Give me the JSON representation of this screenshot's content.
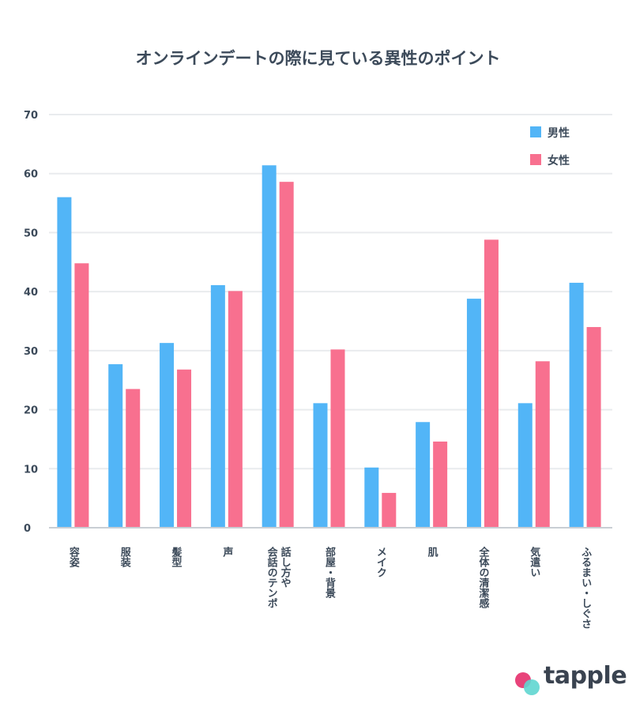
{
  "title": "オンラインデートの際に見ている異性のポイント",
  "colors": {
    "male": "#52b5f7",
    "female": "#f8708f",
    "grid": "#e9ebee",
    "axis": "#c9ced4"
  },
  "brand": {
    "name": "tapple",
    "dot_pink": "#e8437a",
    "dot_teal": "#5fd6d0"
  },
  "chart_data": {
    "type": "bar",
    "categories": [
      "容姿",
      "服装",
      "髪型",
      "声",
      "話し方や会話のテンポ",
      "部屋・背景",
      "メイク",
      "肌",
      "全体の清潔感",
      "気遣い",
      "ふるまい・しぐさ"
    ],
    "category_lines": [
      [
        "容姿"
      ],
      [
        "服装"
      ],
      [
        "髪型"
      ],
      [
        "声"
      ],
      [
        "話し方や",
        "会話のテンポ"
      ],
      [
        "部屋・背景"
      ],
      [
        "メイク"
      ],
      [
        "肌"
      ],
      [
        "全体の清潔感"
      ],
      [
        "気遣い"
      ],
      [
        "ふるまい・しぐさ"
      ]
    ],
    "series": [
      {
        "name": "男性",
        "values": [
          56.0,
          27.7,
          31.3,
          41.1,
          61.4,
          21.1,
          10.2,
          17.9,
          38.8,
          21.1,
          41.5
        ]
      },
      {
        "name": "女性",
        "values": [
          44.8,
          23.5,
          26.8,
          40.1,
          58.6,
          30.2,
          5.9,
          14.6,
          48.8,
          28.2,
          34.0
        ]
      }
    ],
    "yticks": [
      0,
      10,
      20,
      30,
      40,
      50,
      60,
      70
    ],
    "ylim": [
      0,
      70
    ],
    "grid": true,
    "legend": "top-right"
  }
}
